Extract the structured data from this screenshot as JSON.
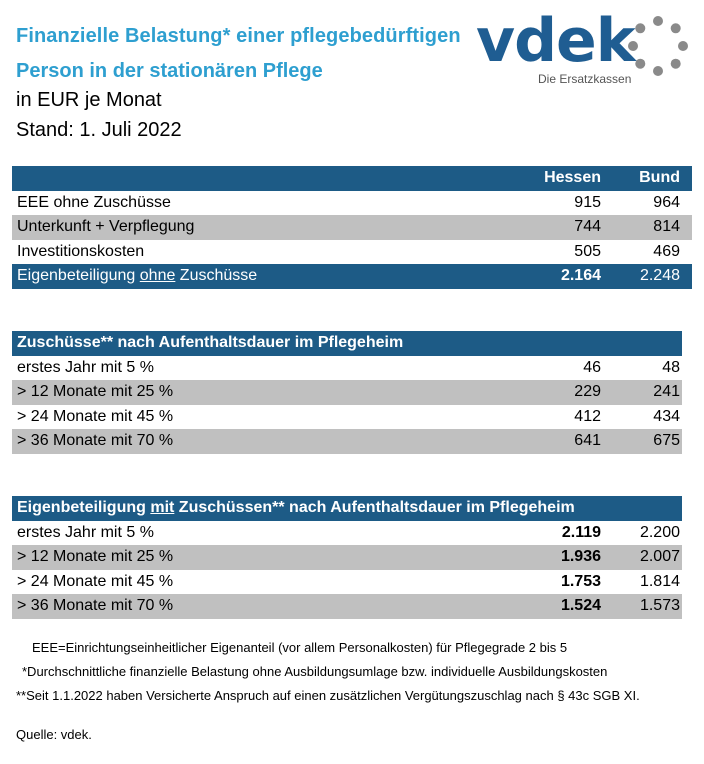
{
  "header": {
    "title_line1": "Finanzielle Belastung* einer pflegebedürftigen",
    "title_line2": "Person in der stationären Pflege",
    "unit": "in EUR je Monat",
    "date": "Stand: 1. Juli 2022"
  },
  "logo": {
    "word": "vdek",
    "tagline": "Die Ersatzkassen"
  },
  "colors": {
    "title": "#2e9fd0",
    "header_bar": "#1d5b86",
    "gray_row": "#c0c0c0",
    "logo": "#1f5d92",
    "logo_ring": "#8a8a8a"
  },
  "table1": {
    "col_hessen": "Hessen",
    "col_bund": "Bund",
    "rows": [
      {
        "label": "EEE ohne Zuschüsse",
        "hessen": "915",
        "bund": "964"
      },
      {
        "label": "Unterkunft + Verpflegung",
        "hessen": "744",
        "bund": "814"
      },
      {
        "label": "Investitionskosten",
        "hessen": "505",
        "bund": "469"
      }
    ],
    "total": {
      "label_pre": "Eigenbeteiligung ",
      "label_u": "ohne",
      "label_post": " Zuschüsse",
      "hessen": "2.164",
      "bund": "2.248"
    }
  },
  "table2": {
    "header": "Zuschüsse** nach Aufenthaltsdauer im Pflegeheim",
    "rows": [
      {
        "label": "erstes Jahr mit 5 %",
        "hessen": "46",
        "bund": "48"
      },
      {
        "label": "> 12 Monate mit 25 %",
        "hessen": "229",
        "bund": "241"
      },
      {
        "label": "> 24 Monate mit 45 %",
        "hessen": "412",
        "bund": "434"
      },
      {
        "label": "> 36 Monate mit 70 %",
        "hessen": "641",
        "bund": "675"
      }
    ]
  },
  "table3": {
    "header_pre": "Eigenbeteiligung ",
    "header_u": "mit",
    "header_post": " Zuschüssen** nach Aufenthaltsdauer im Pflegeheim",
    "rows": [
      {
        "label": "erstes Jahr mit 5 %",
        "hessen": "2.119",
        "bund": "2.200"
      },
      {
        "label": "> 12 Monate mit 25 %",
        "hessen": "1.936",
        "bund": "2.007"
      },
      {
        "label": "> 24 Monate mit 45 %",
        "hessen": "1.753",
        "bund": "1.814"
      },
      {
        "label": "> 36 Monate mit 70 %",
        "hessen": "1.524",
        "bund": "1.573"
      }
    ]
  },
  "notes": {
    "n1": "EEE=Einrichtungseinheitlicher Eigenanteil (vor allem Personalkosten) für Pflegegrade 2 bis 5",
    "n2": "*Durchschnittliche finanzielle Belastung ohne Ausbildungsumlage bzw. individuelle Ausbildungskosten",
    "n3": "**Seit 1.1.2022 haben Versicherte Anspruch auf einen zusätzlichen Vergütungszuschlag nach § 43c SGB XI.",
    "source": "Quelle: vdek."
  }
}
